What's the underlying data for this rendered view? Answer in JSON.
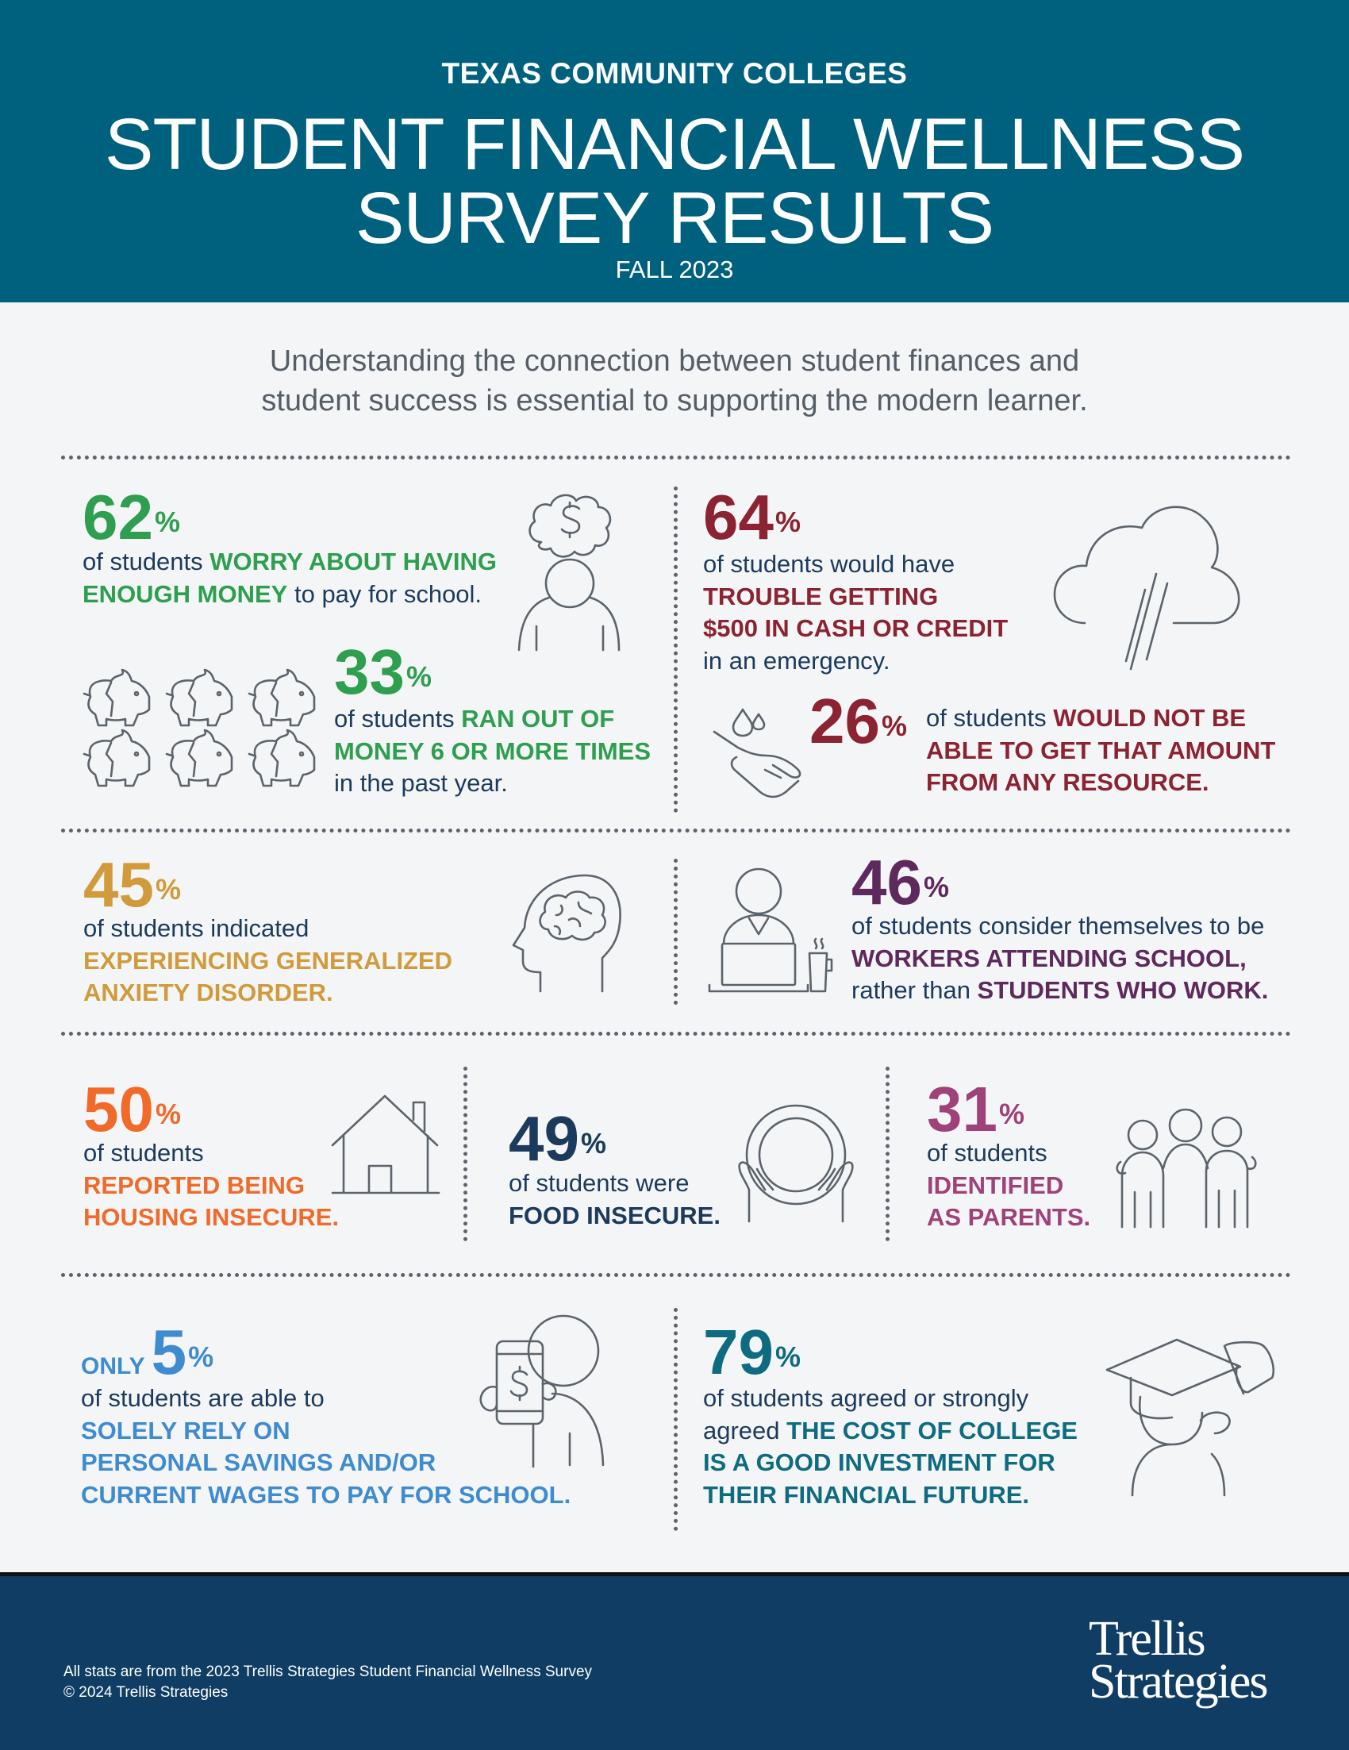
{
  "header": {
    "kicker": "TEXAS COMMUNITY COLLEGES",
    "title_line1": "STUDENT FINANCIAL WELLNESS",
    "title_line2": "SURVEY RESULTS",
    "season": "FALL 2023"
  },
  "intro": {
    "line1": "Understanding the connection between student finances and",
    "line2": "student success is essential to supporting the modern learner."
  },
  "colors": {
    "header_bg": "#00617f",
    "footer_bg": "#0f3d63",
    "body_text": "#1b3a5c",
    "icon_stroke": "#5b636b",
    "logo_dot": "#f06a2a"
  },
  "stats": [
    {
      "id": "s62",
      "number": "62",
      "pct": "%",
      "color": "#2e9e4f",
      "icon": "worried-person-dollar-thought-icon",
      "lines": [
        [
          {
            "t": "of students ",
            "em": false
          },
          {
            "t": "WORRY ABOUT HAVING",
            "em": true
          }
        ],
        [
          {
            "t": "ENOUGH MONEY",
            "em": true
          },
          {
            "t": " to pay for school.",
            "em": false
          }
        ]
      ]
    },
    {
      "id": "s33",
      "number": "33",
      "pct": "%",
      "color": "#2e9e4f",
      "icon": "broken-piggy-banks-icon",
      "lines": [
        [
          {
            "t": "of students ",
            "em": false
          },
          {
            "t": "RAN OUT OF",
            "em": true
          }
        ],
        [
          {
            "t": "MONEY 6 OR MORE TIMES",
            "em": true
          }
        ],
        [
          {
            "t": "in the past year.",
            "em": false
          }
        ]
      ]
    },
    {
      "id": "s64",
      "number": "64",
      "pct": "%",
      "color": "#8b2332",
      "icon": "rain-cloud-icon",
      "lines": [
        [
          {
            "t": "of students would have",
            "em": false
          }
        ],
        [
          {
            "t": "TROUBLE GETTING",
            "em": true
          }
        ],
        [
          {
            "t": "$500 IN CASH OR CREDIT",
            "em": true
          }
        ],
        [
          {
            "t": "in an emergency.",
            "em": false
          }
        ]
      ]
    },
    {
      "id": "s26",
      "number": "26",
      "pct": "%",
      "color": "#8b2332",
      "icon": "hand-water-drop-icon",
      "lines": [
        [
          {
            "t": "of students ",
            "em": false
          },
          {
            "t": "WOULD NOT BE",
            "em": true
          }
        ],
        [
          {
            "t": "ABLE TO GET THAT AMOUNT",
            "em": true
          }
        ],
        [
          {
            "t": "FROM ANY RESOURCE.",
            "em": true
          }
        ]
      ]
    },
    {
      "id": "s45",
      "number": "45",
      "pct": "%",
      "color": "#d19a3a",
      "icon": "head-brain-icon",
      "lines": [
        [
          {
            "t": "of students indicated",
            "em": false
          }
        ],
        [
          {
            "t": "EXPERIENCING GENERALIZED",
            "em": true
          }
        ],
        [
          {
            "t": "ANXIETY DISORDER.",
            "em": true
          }
        ]
      ]
    },
    {
      "id": "s46",
      "number": "46",
      "pct": "%",
      "color": "#5e2a5e",
      "icon": "person-laptop-coffee-icon",
      "lines": [
        [
          {
            "t": "of students consider themselves to be",
            "em": false
          }
        ],
        [
          {
            "t": "WORKERS ATTENDING SCHOOL,",
            "em": true
          }
        ],
        [
          {
            "t": "rather than ",
            "em": false
          },
          {
            "t": "STUDENTS WHO WORK.",
            "em": true
          }
        ]
      ]
    },
    {
      "id": "s50",
      "number": "50",
      "pct": "%",
      "color": "#f06a2a",
      "icon": "house-icon",
      "lines": [
        [
          {
            "t": "of students",
            "em": false
          }
        ],
        [
          {
            "t": "REPORTED BEING",
            "em": true
          }
        ],
        [
          {
            "t": "HOUSING INSECURE.",
            "em": true
          }
        ]
      ]
    },
    {
      "id": "s49",
      "number": "49",
      "pct": "%",
      "color": "#1b3a5c",
      "icon": "hands-holding-plate-icon",
      "lines": [
        [
          {
            "t": "of students were",
            "em": false
          }
        ],
        [
          {
            "t": "FOOD INSECURE.",
            "em": true
          }
        ]
      ]
    },
    {
      "id": "s31",
      "number": "31",
      "pct": "%",
      "color": "#a0427a",
      "icon": "family-icon",
      "lines": [
        [
          {
            "t": "of students",
            "em": false
          }
        ],
        [
          {
            "t": "IDENTIFIED",
            "em": true
          }
        ],
        [
          {
            "t": "AS PARENTS.",
            "em": true
          }
        ]
      ]
    },
    {
      "id": "s5",
      "prefix": "ONLY",
      "number": "5",
      "pct": "%",
      "color": "#3f8bd0",
      "icon": "person-phone-dollar-icon",
      "lines": [
        [
          {
            "t": "of students are able to",
            "em": false
          }
        ],
        [
          {
            "t": "SOLELY RELY ON",
            "em": true
          }
        ],
        [
          {
            "t": "PERSONAL SAVINGS AND/OR",
            "em": true
          }
        ],
        [
          {
            "t": "CURRENT WAGES TO PAY FOR SCHOOL.",
            "em": true
          }
        ]
      ]
    },
    {
      "id": "s79",
      "number": "79",
      "pct": "%",
      "color": "#0f6b80",
      "icon": "graduate-diploma-icon",
      "lines": [
        [
          {
            "t": "of students agreed or strongly",
            "em": false
          }
        ],
        [
          {
            "t": "agreed ",
            "em": false
          },
          {
            "t": "THE COST OF COLLEGE",
            "em": true
          }
        ],
        [
          {
            "t": "IS A GOOD INVESTMENT FOR",
            "em": true
          }
        ],
        [
          {
            "t": "THEIR FINANCIAL FUTURE.",
            "em": true
          }
        ]
      ]
    }
  ],
  "footer": {
    "source": "All stats are from the 2023 Trellis Strategies Student Financial Wellness Survey",
    "copyright": "© 2024 Trellis Strategies",
    "logo_line1": "Trellis",
    "logo_line2": "Strategies"
  }
}
